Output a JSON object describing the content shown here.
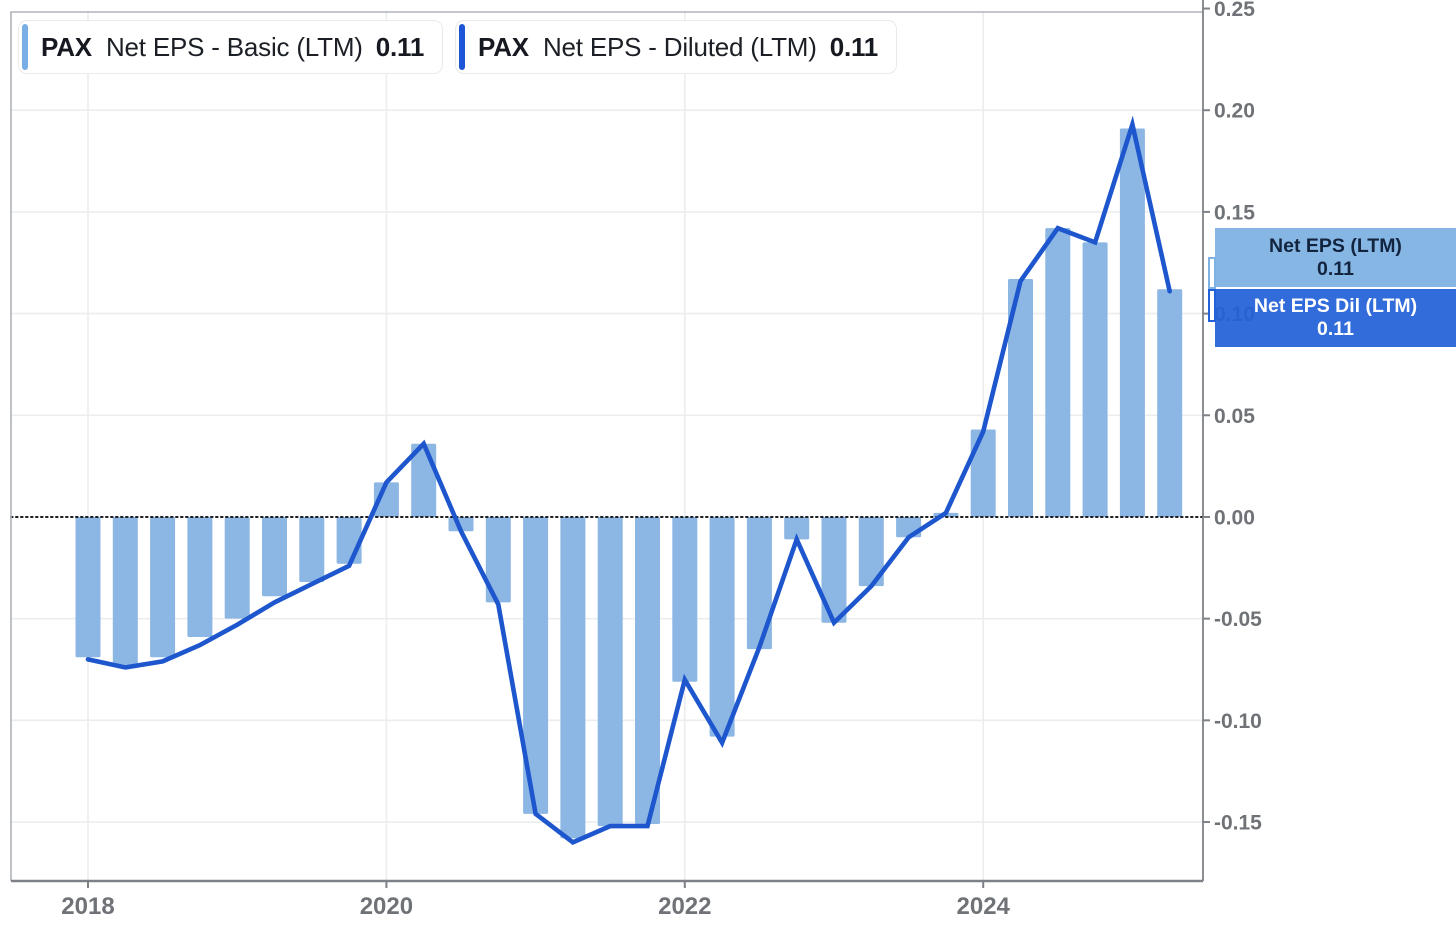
{
  "ticker": "PAX",
  "legend": {
    "items": [
      {
        "ticker": "PAX",
        "series": "Net EPS - Basic (LTM)",
        "value": "0.11",
        "swatch_color": "#79AEE6"
      },
      {
        "ticker": "PAX",
        "series": "Net EPS - Diluted (LTM)",
        "value": "0.11",
        "swatch_color": "#1D55D6"
      }
    ]
  },
  "flags": [
    {
      "label": "Net EPS (LTM)",
      "value": "0.11",
      "bg": "#7FB2E2",
      "fg": "#13243F"
    },
    {
      "label": "Net EPS Dil (LTM)",
      "value": "0.11",
      "bg": "#2261D8",
      "fg": "#FFFFFF"
    }
  ],
  "colors": {
    "bar_fill": "#8CB6E3",
    "line_stroke": "#1D56CD",
    "grid": "#ECEDEF",
    "frame": "#AFB3B9",
    "axis": "#7E8187",
    "tick_label": "#6F7277",
    "zero_line": "#1B1D20"
  },
  "chart_data": {
    "type": "bar",
    "subtype": "bar-line combo, quarterly EPS with LTM overlay",
    "title": "",
    "xlabel": "",
    "ylabel": "",
    "ylim": [
      -0.179,
      0.2483
    ],
    "grid": "light horizontal and vertical at labeled ticks",
    "zero_line": "dotted black at 0.00",
    "legend_position": "top-left chips",
    "categories": [
      "2017 Q4",
      "2018 Q1",
      "2018 Q2",
      "2018 Q3",
      "2018 Q4",
      "2019 Q1",
      "2019 Q2",
      "2019 Q3",
      "2019 Q4",
      "2020 Q1",
      "2020 Q2",
      "2020 Q3",
      "2020 Q4",
      "2021 Q1",
      "2021 Q2",
      "2021 Q3",
      "2021 Q4",
      "2022 Q1",
      "2022 Q2",
      "2022 Q3",
      "2022 Q4",
      "2023 Q1",
      "2023 Q2",
      "2023 Q3",
      "2023 Q4",
      "2024 Q1",
      "2024 Q2",
      "2024 Q3",
      "2024 Q4",
      "2025 Q1"
    ],
    "series": [
      {
        "name": "PAX Net EPS - Basic (LTM)",
        "type": "bar",
        "color": "#8CB6E3",
        "values": [
          -0.069,
          -0.073,
          -0.069,
          -0.059,
          -0.05,
          -0.039,
          -0.032,
          -0.023,
          0.017,
          0.036,
          -0.007,
          -0.042,
          -0.146,
          -0.158,
          -0.152,
          -0.151,
          -0.081,
          -0.108,
          -0.065,
          -0.011,
          -0.052,
          -0.034,
          -0.01,
          0.002,
          0.043,
          0.117,
          0.142,
          0.135,
          0.191,
          0.112
        ]
      },
      {
        "name": "PAX Net EPS - Diluted (LTM)",
        "type": "line",
        "color": "#1D56CD",
        "values": [
          -0.07,
          -0.074,
          -0.071,
          -0.063,
          -0.053,
          -0.042,
          -0.033,
          -0.024,
          0.017,
          0.036,
          -0.007,
          -0.043,
          -0.146,
          -0.16,
          -0.152,
          -0.152,
          -0.08,
          -0.111,
          -0.064,
          -0.011,
          -0.052,
          -0.034,
          -0.01,
          0.002,
          0.042,
          0.116,
          0.142,
          0.135,
          0.193,
          0.111
        ]
      }
    ],
    "x_ticks": [
      {
        "label": "2018",
        "index": 0
      },
      {
        "label": "2020",
        "index": 8
      },
      {
        "label": "2022",
        "index": 16
      },
      {
        "label": "2024",
        "index": 24
      }
    ],
    "y_ticks": [
      0.25,
      0.2,
      0.15,
      0.1,
      0.05,
      0.0,
      -0.05,
      -0.1,
      -0.15
    ],
    "y_tick_labels": [
      "0.25",
      "0.20",
      "0.15",
      "0.10",
      "0.05",
      "0.00",
      "-0.05",
      "-0.10",
      "-0.15"
    ]
  }
}
